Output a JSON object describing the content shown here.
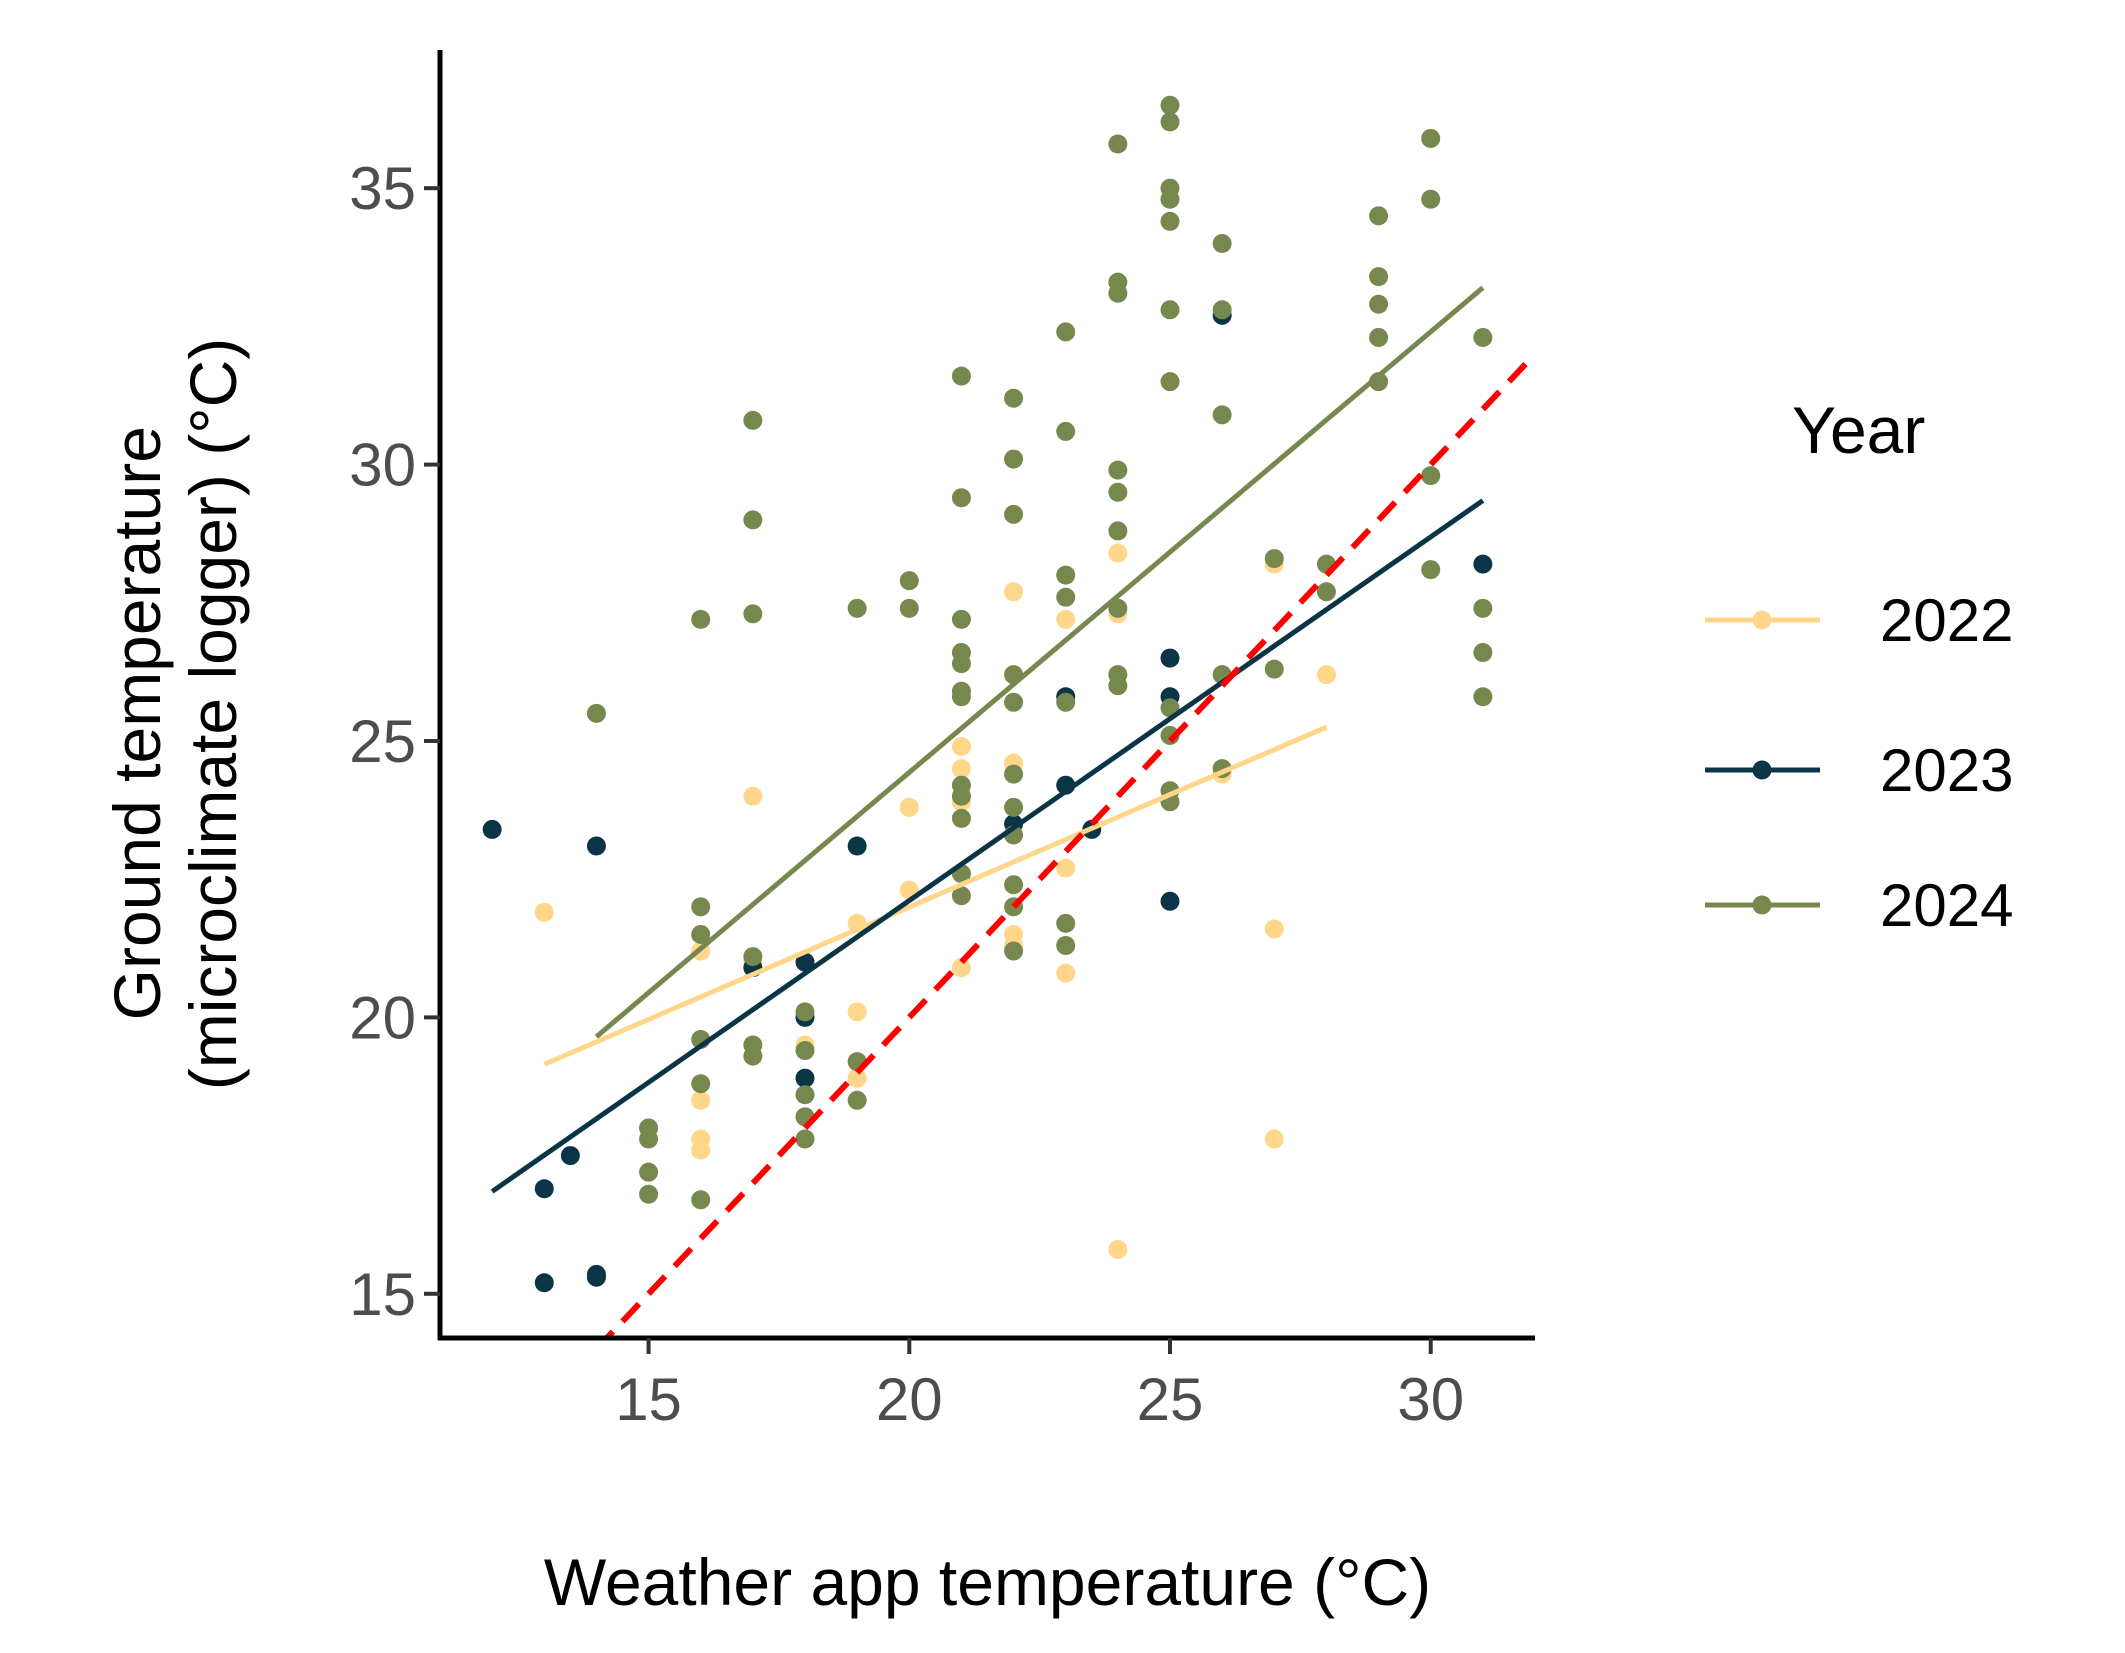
{
  "chart_data": {
    "type": "scatter",
    "xlabel": "Weather app temperature (°C)",
    "ylabel": [
      "Ground temperature",
      "(microclimate logger) (°C)"
    ],
    "xlim": [
      11,
      32
    ],
    "ylim": [
      14.2,
      37.5
    ],
    "xticks": [
      15,
      20,
      25,
      30
    ],
    "yticks": [
      15,
      20,
      25,
      30,
      35
    ],
    "grid": false,
    "legend": {
      "title": "Year",
      "placement": "right"
    },
    "reference_line": {
      "style": "dashed",
      "color": "#ff0000",
      "slope": 1,
      "intercept": 0,
      "x_range": [
        14,
        32
      ]
    },
    "series": [
      {
        "name": "2022",
        "color": "#ffd68a",
        "trend": {
          "x": [
            13,
            28
          ],
          "y": [
            19.15,
            25.25
          ]
        },
        "points": [
          [
            13,
            21.9
          ],
          [
            16,
            21.2
          ],
          [
            16,
            18.5
          ],
          [
            16,
            17.8
          ],
          [
            16,
            17.6
          ],
          [
            17,
            24.0
          ],
          [
            17,
            21.0
          ],
          [
            18,
            19.5
          ],
          [
            18,
            21.0
          ],
          [
            19,
            21.7
          ],
          [
            19,
            20.1
          ],
          [
            19,
            18.9
          ],
          [
            20,
            23.8
          ],
          [
            20,
            22.3
          ],
          [
            21,
            24.9
          ],
          [
            21,
            24.5
          ],
          [
            21,
            20.9
          ],
          [
            21,
            22.6
          ],
          [
            21,
            23.9
          ],
          [
            22,
            27.7
          ],
          [
            22,
            24.6
          ],
          [
            22,
            21.5
          ],
          [
            22,
            21.3
          ],
          [
            23,
            27.2
          ],
          [
            23,
            22.7
          ],
          [
            23,
            20.8
          ],
          [
            24,
            28.4
          ],
          [
            24,
            27.3
          ],
          [
            24,
            15.8
          ],
          [
            26,
            24.4
          ],
          [
            27,
            28.2
          ],
          [
            27,
            21.6
          ],
          [
            27,
            17.8
          ],
          [
            28,
            26.2
          ]
        ]
      },
      {
        "name": "2023",
        "color": "#0a3546",
        "trend": {
          "x": [
            12,
            31
          ],
          "y": [
            16.85,
            29.35
          ]
        },
        "points": [
          [
            12,
            23.4
          ],
          [
            13,
            16.9
          ],
          [
            13,
            15.2
          ],
          [
            13.5,
            17.5
          ],
          [
            14,
            23.1
          ],
          [
            14,
            15.3
          ],
          [
            14,
            15.35
          ],
          [
            17,
            20.9
          ],
          [
            18,
            21.0
          ],
          [
            18,
            20.0
          ],
          [
            18,
            18.9
          ],
          [
            19,
            23.1
          ],
          [
            22,
            23.5
          ],
          [
            23,
            24.2
          ],
          [
            23,
            25.8
          ],
          [
            23.5,
            23.4
          ],
          [
            25,
            26.5
          ],
          [
            25,
            25.8
          ],
          [
            25,
            22.1
          ],
          [
            26,
            32.7
          ],
          [
            31,
            28.2
          ]
        ]
      },
      {
        "name": "2024",
        "color": "#76884e",
        "trend": {
          "x": [
            14,
            31
          ],
          "y": [
            19.65,
            33.2
          ]
        },
        "points": [
          [
            14,
            25.5
          ],
          [
            15,
            18.0
          ],
          [
            15,
            17.8
          ],
          [
            15,
            17.2
          ],
          [
            15,
            16.8
          ],
          [
            16,
            27.2
          ],
          [
            16,
            22.0
          ],
          [
            16,
            21.5
          ],
          [
            16,
            19.6
          ],
          [
            16,
            18.8
          ],
          [
            16,
            16.7
          ],
          [
            17,
            30.8
          ],
          [
            17,
            29.0
          ],
          [
            17,
            27.3
          ],
          [
            17,
            21.1
          ],
          [
            17,
            19.5
          ],
          [
            17,
            19.3
          ],
          [
            18,
            20.1
          ],
          [
            18,
            19.4
          ],
          [
            18,
            18.6
          ],
          [
            18,
            18.2
          ],
          [
            18,
            17.8
          ],
          [
            19,
            27.4
          ],
          [
            19,
            19.2
          ],
          [
            19,
            18.5
          ],
          [
            20,
            27.9
          ],
          [
            20,
            27.4
          ],
          [
            21,
            31.6
          ],
          [
            21,
            29.4
          ],
          [
            21,
            27.2
          ],
          [
            21,
            26.6
          ],
          [
            21,
            26.4
          ],
          [
            21,
            25.9
          ],
          [
            21,
            25.8
          ],
          [
            21,
            24.2
          ],
          [
            21,
            24.0
          ],
          [
            21,
            23.6
          ],
          [
            21,
            22.6
          ],
          [
            21,
            22.2
          ],
          [
            22,
            31.2
          ],
          [
            22,
            30.1
          ],
          [
            22,
            29.1
          ],
          [
            22,
            26.2
          ],
          [
            22,
            25.7
          ],
          [
            22,
            24.4
          ],
          [
            22,
            23.8
          ],
          [
            22,
            23.3
          ],
          [
            22,
            22.4
          ],
          [
            22,
            22.0
          ],
          [
            22,
            21.2
          ],
          [
            23,
            32.4
          ],
          [
            23,
            30.6
          ],
          [
            23,
            28.0
          ],
          [
            23,
            27.6
          ],
          [
            23,
            25.7
          ],
          [
            23,
            21.7
          ],
          [
            23,
            21.3
          ],
          [
            24,
            35.8
          ],
          [
            24,
            33.3
          ],
          [
            24,
            33.1
          ],
          [
            24,
            29.9
          ],
          [
            24,
            29.5
          ],
          [
            24,
            28.8
          ],
          [
            24,
            27.4
          ],
          [
            24,
            26.2
          ],
          [
            24,
            26.0
          ],
          [
            25,
            36.5
          ],
          [
            25,
            36.2
          ],
          [
            25,
            35.0
          ],
          [
            25,
            34.8
          ],
          [
            25,
            34.4
          ],
          [
            25,
            32.8
          ],
          [
            25,
            31.5
          ],
          [
            25,
            25.6
          ],
          [
            25,
            25.1
          ],
          [
            25,
            24.1
          ],
          [
            25,
            23.9
          ],
          [
            26,
            34.0
          ],
          [
            26,
            32.8
          ],
          [
            26,
            30.9
          ],
          [
            26,
            26.2
          ],
          [
            26,
            24.5
          ],
          [
            27,
            28.3
          ],
          [
            27,
            26.3
          ],
          [
            28,
            28.2
          ],
          [
            28,
            27.7
          ],
          [
            29,
            34.5
          ],
          [
            29,
            33.4
          ],
          [
            29,
            32.9
          ],
          [
            29,
            32.3
          ],
          [
            29,
            31.5
          ],
          [
            30,
            35.9
          ],
          [
            30,
            34.8
          ],
          [
            30,
            29.8
          ],
          [
            30,
            28.1
          ],
          [
            31,
            32.3
          ],
          [
            31,
            27.4
          ],
          [
            31,
            26.6
          ],
          [
            31,
            25.8
          ]
        ]
      }
    ]
  }
}
